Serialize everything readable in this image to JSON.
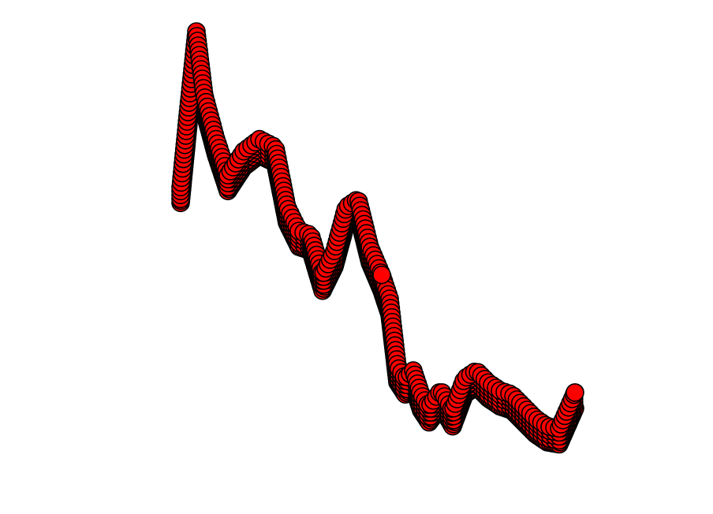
{
  "chart_data": {
    "type": "scatter",
    "title": "",
    "xlabel": "",
    "ylabel": "",
    "axes_visible": false,
    "grid": false,
    "marker": {
      "shape": "circle",
      "fill": "#ff0000",
      "edge": "#000000"
    },
    "path_x": [
      0.0,
      0.02,
      0.04,
      0.06,
      0.09,
      0.12,
      0.16,
      0.2,
      0.24,
      0.27,
      0.3,
      0.33,
      0.36,
      0.39,
      0.42,
      0.45,
      0.48,
      0.51,
      0.53,
      0.55,
      0.57,
      0.59,
      0.61,
      0.63,
      0.66,
      0.69,
      0.72,
      0.75,
      0.78,
      0.81,
      0.84,
      0.87,
      0.9,
      0.93,
      0.96,
      1.0
    ],
    "path_y": [
      0.61,
      0.81,
      1.0,
      0.84,
      0.73,
      0.64,
      0.7,
      0.73,
      0.71,
      0.56,
      0.5,
      0.49,
      0.39,
      0.45,
      0.56,
      0.58,
      0.46,
      0.39,
      0.33,
      0.16,
      0.13,
      0.15,
      0.09,
      0.06,
      0.1,
      0.05,
      0.13,
      0.15,
      0.12,
      0.1,
      0.09,
      0.06,
      0.03,
      0.01,
      0.005,
      0.095
    ],
    "highlight_points": [
      {
        "x": 0.51,
        "y": 0.39
      },
      {
        "x": 1.0,
        "y": 0.095
      }
    ]
  }
}
